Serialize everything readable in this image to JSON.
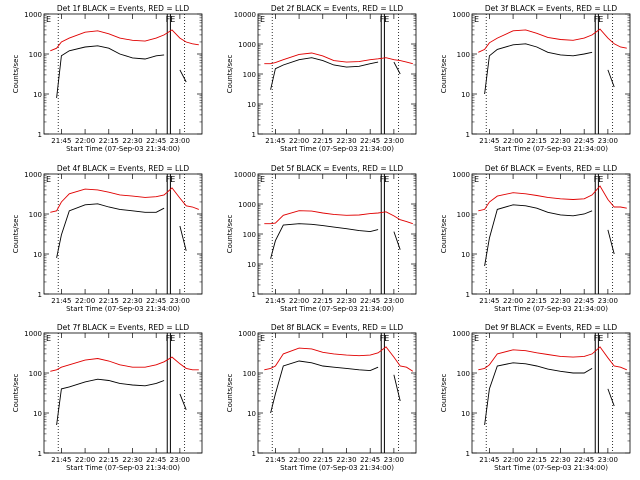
{
  "figure": {
    "ylabel": "Counts/sec",
    "xlabel": "Start Time (07-Sep-03 21:34:00)",
    "tick_labels_y": [
      "1",
      "10",
      "100",
      "1000"
    ],
    "tick_labels_x": [
      "21:45",
      "22:00",
      "22:15",
      "22:30",
      "22:45",
      "23:00"
    ],
    "marker_E": "E",
    "marker_FE": "FE",
    "colors": {
      "events": "#000000",
      "lld": "#e00000",
      "axes": "#000000"
    }
  },
  "chart_data": [
    {
      "type": "line",
      "title": "Det 1f BLACK = Events, RED = LLD",
      "xlabel": "Start Time (07-Sep-03 21:34:00)",
      "ylabel": "Counts/sec",
      "x": [
        "21:38",
        "21:42",
        "21:45",
        "21:50",
        "22:00",
        "22:08",
        "22:15",
        "22:22",
        "22:30",
        "22:38",
        "22:45",
        "22:50",
        "22:55",
        "23:00",
        "23:04",
        "23:08",
        "23:12"
      ],
      "series": [
        {
          "name": "Events",
          "values": [
            null,
            8,
            90,
            120,
            150,
            160,
            140,
            100,
            80,
            75,
            90,
            95,
            null,
            40,
            20,
            null,
            null
          ]
        },
        {
          "name": "LLD",
          "values": [
            120,
            140,
            200,
            250,
            350,
            380,
            320,
            250,
            220,
            210,
            250,
            300,
            400,
            250,
            200,
            180,
            170
          ]
        }
      ],
      "ylim": [
        1,
        1000
      ],
      "yscale": "log"
    },
    {
      "type": "line",
      "title": "Det 2f BLACK = Events, RED = LLD",
      "xlabel": "Start Time (07-Sep-03 21:34:00)",
      "ylabel": "Counts/sec",
      "x": [
        "21:38",
        "21:42",
        "21:45",
        "21:50",
        "22:00",
        "22:08",
        "22:15",
        "22:22",
        "22:30",
        "22:38",
        "22:45",
        "22:50",
        "22:55",
        "23:00",
        "23:04",
        "23:08",
        "23:12"
      ],
      "series": [
        {
          "name": "Events",
          "values": [
            null,
            30,
            150,
            200,
            300,
            350,
            280,
            200,
            170,
            180,
            220,
            250,
            null,
            250,
            100,
            null,
            null
          ]
        },
        {
          "name": "LLD",
          "values": [
            220,
            220,
            240,
            300,
            450,
            500,
            400,
            280,
            250,
            260,
            300,
            320,
            350,
            300,
            280,
            250,
            220
          ]
        }
      ],
      "ylim": [
        1,
        10000
      ],
      "yscale": "log"
    },
    {
      "type": "line",
      "title": "Det 3f BLACK = Events, RED = LLD",
      "xlabel": "Start Time (07-Sep-03 21:34:00)",
      "ylabel": "Counts/sec",
      "x": [
        "21:38",
        "21:42",
        "21:45",
        "21:50",
        "22:00",
        "22:08",
        "22:15",
        "22:22",
        "22:30",
        "22:38",
        "22:45",
        "22:50",
        "22:55",
        "23:00",
        "23:04",
        "23:08",
        "23:12"
      ],
      "series": [
        {
          "name": "Events",
          "values": [
            null,
            10,
            90,
            130,
            170,
            180,
            150,
            110,
            95,
            90,
            100,
            110,
            null,
            40,
            15,
            null,
            null
          ]
        },
        {
          "name": "LLD",
          "values": [
            110,
            130,
            190,
            250,
            380,
            400,
            330,
            260,
            230,
            220,
            250,
            300,
            420,
            250,
            180,
            150,
            140
          ]
        }
      ],
      "ylim": [
        1,
        1000
      ],
      "yscale": "log"
    },
    {
      "type": "line",
      "title": "Det 4f BLACK = Events, RED = LLD",
      "xlabel": "Start Time (07-Sep-03 21:34:00)",
      "ylabel": "Counts/sec",
      "x": [
        "21:38",
        "21:42",
        "21:45",
        "21:50",
        "22:00",
        "22:08",
        "22:15",
        "22:22",
        "22:30",
        "22:38",
        "22:45",
        "22:50",
        "22:55",
        "23:00",
        "23:04",
        "23:08",
        "23:12"
      ],
      "series": [
        {
          "name": "Events",
          "values": [
            null,
            8,
            30,
            120,
            170,
            180,
            150,
            130,
            120,
            110,
            110,
            140,
            null,
            50,
            12,
            null,
            null
          ]
        },
        {
          "name": "LLD",
          "values": [
            110,
            120,
            200,
            320,
            420,
            400,
            350,
            300,
            280,
            260,
            270,
            300,
            450,
            250,
            160,
            150,
            130
          ]
        }
      ],
      "ylim": [
        1,
        1000
      ],
      "yscale": "log"
    },
    {
      "type": "line",
      "title": "Det 5f BLACK = Events, RED = LLD",
      "xlabel": "Start Time (07-Sep-03 21:34:00)",
      "ylabel": "Counts/sec",
      "x": [
        "21:38",
        "21:42",
        "21:45",
        "21:50",
        "22:00",
        "22:08",
        "22:15",
        "22:22",
        "22:30",
        "22:38",
        "22:45",
        "22:50",
        "22:55",
        "23:00",
        "23:04",
        "23:08",
        "23:12"
      ],
      "series": [
        {
          "name": "Events",
          "values": [
            null,
            15,
            60,
            200,
            220,
            210,
            190,
            170,
            150,
            130,
            120,
            140,
            null,
            120,
            30,
            null,
            null
          ]
        },
        {
          "name": "LLD",
          "values": [
            220,
            220,
            230,
            420,
            600,
            580,
            500,
            450,
            420,
            430,
            480,
            500,
            550,
            400,
            300,
            260,
            220
          ]
        }
      ],
      "ylim": [
        1,
        10000
      ],
      "yscale": "log"
    },
    {
      "type": "line",
      "title": "Det 6f BLACK = Events, RED = LLD",
      "xlabel": "Start Time (07-Sep-03 21:34:00)",
      "ylabel": "Counts/sec",
      "x": [
        "21:38",
        "21:42",
        "21:45",
        "21:50",
        "22:00",
        "22:08",
        "22:15",
        "22:22",
        "22:30",
        "22:38",
        "22:45",
        "22:50",
        "22:55",
        "23:00",
        "23:04",
        "23:08",
        "23:12"
      ],
      "series": [
        {
          "name": "Events",
          "values": [
            null,
            5,
            25,
            130,
            170,
            160,
            140,
            110,
            95,
            90,
            100,
            120,
            null,
            40,
            10,
            null,
            null
          ]
        },
        {
          "name": "LLD",
          "values": [
            120,
            130,
            200,
            280,
            340,
            320,
            290,
            260,
            240,
            230,
            240,
            300,
            500,
            230,
            150,
            150,
            140
          ]
        }
      ],
      "ylim": [
        1,
        1000
      ],
      "yscale": "log"
    },
    {
      "type": "line",
      "title": "Det 7f BLACK = Events, RED = LLD",
      "xlabel": "Start Time (07-Sep-03 21:34:00)",
      "ylabel": "Counts/sec",
      "x": [
        "21:38",
        "21:42",
        "21:45",
        "21:50",
        "22:00",
        "22:08",
        "22:15",
        "22:22",
        "22:30",
        "22:38",
        "22:45",
        "22:50",
        "22:55",
        "23:00",
        "23:04",
        "23:08",
        "23:12"
      ],
      "series": [
        {
          "name": "Events",
          "values": [
            null,
            5,
            40,
            45,
            60,
            70,
            65,
            55,
            50,
            48,
            55,
            65,
            null,
            30,
            12,
            null,
            null
          ]
        },
        {
          "name": "LLD",
          "values": [
            110,
            120,
            140,
            160,
            210,
            230,
            200,
            160,
            140,
            140,
            160,
            190,
            250,
            170,
            130,
            120,
            120
          ]
        }
      ],
      "ylim": [
        1,
        1000
      ],
      "yscale": "log"
    },
    {
      "type": "line",
      "title": "Det 8f BLACK = Events, RED = LLD",
      "xlabel": "Start Time (07-Sep-03 21:34:00)",
      "ylabel": "Counts/sec",
      "x": [
        "21:38",
        "21:42",
        "21:45",
        "21:50",
        "22:00",
        "22:08",
        "22:15",
        "22:22",
        "22:30",
        "22:38",
        "22:45",
        "22:50",
        "22:55",
        "23:00",
        "23:04",
        "23:08",
        "23:12"
      ],
      "series": [
        {
          "name": "Events",
          "values": [
            null,
            10,
            30,
            150,
            200,
            180,
            150,
            140,
            130,
            120,
            115,
            140,
            null,
            90,
            20,
            null,
            null
          ]
        },
        {
          "name": "LLD",
          "values": [
            120,
            130,
            150,
            300,
            420,
            400,
            330,
            300,
            280,
            270,
            280,
            320,
            450,
            250,
            150,
            140,
            110
          ]
        }
      ],
      "ylim": [
        1,
        1000
      ],
      "yscale": "log"
    },
    {
      "type": "line",
      "title": "Det 9f BLACK = Events, RED = LLD",
      "xlabel": "Start Time (07-Sep-03 21:34:00)",
      "ylabel": "Counts/sec",
      "x": [
        "21:38",
        "21:42",
        "21:45",
        "21:50",
        "22:00",
        "22:08",
        "22:15",
        "22:22",
        "22:30",
        "22:38",
        "22:45",
        "22:50",
        "22:55",
        "23:00",
        "23:04",
        "23:08",
        "23:12"
      ],
      "series": [
        {
          "name": "Events",
          "values": [
            null,
            5,
            40,
            150,
            180,
            170,
            150,
            125,
            110,
            100,
            100,
            130,
            null,
            40,
            15,
            null,
            null
          ]
        },
        {
          "name": "LLD",
          "values": [
            120,
            130,
            160,
            300,
            380,
            360,
            320,
            290,
            260,
            250,
            260,
            300,
            450,
            240,
            150,
            140,
            120
          ]
        }
      ],
      "ylim": [
        1,
        1000
      ],
      "yscale": "log"
    }
  ]
}
